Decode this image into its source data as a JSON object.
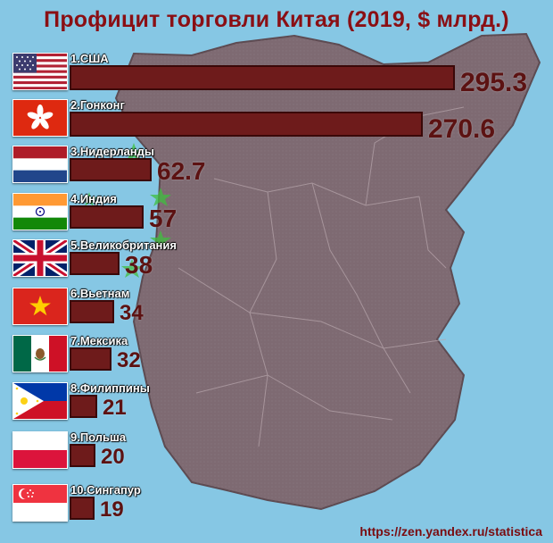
{
  "title": "Профицит торговли Китая (2019, $ млрд.)",
  "source": "https://zen.yandex.ru/statistica",
  "colors": {
    "bar": "#6e1b1b",
    "bar_border": "#3a0808",
    "title": "#8a0f14",
    "background": "#86c7e4",
    "map": "#7e6a72"
  },
  "chart_data": {
    "type": "bar",
    "orientation": "horizontal",
    "title": "Профицит торговли Китая (2019, $ млрд.)",
    "unit": "$ млрд.",
    "categories": [
      "1.США",
      "2.Гонконг",
      "3.Нидерланды",
      "4.Индия",
      "5.Великобритания",
      "6.Вьетнам",
      "7.Мексика",
      "8.Филиппины",
      "9.Польша",
      "10.Сингапур"
    ],
    "values": [
      295.3,
      270.6,
      62.7,
      57,
      38,
      34,
      32,
      21,
      20,
      19
    ],
    "value_labels": [
      "295.3",
      "270.6",
      "62.7",
      "57",
      "38",
      "34",
      "32",
      "21",
      "20",
      "19"
    ],
    "flags": [
      "usa-flag-icon",
      "hong-kong-flag-icon",
      "netherlands-flag-icon",
      "india-flag-icon",
      "uk-flag-icon",
      "vietnam-flag-icon",
      "mexico-flag-icon",
      "philippines-flag-icon",
      "poland-flag-icon",
      "singapore-flag-icon"
    ]
  }
}
